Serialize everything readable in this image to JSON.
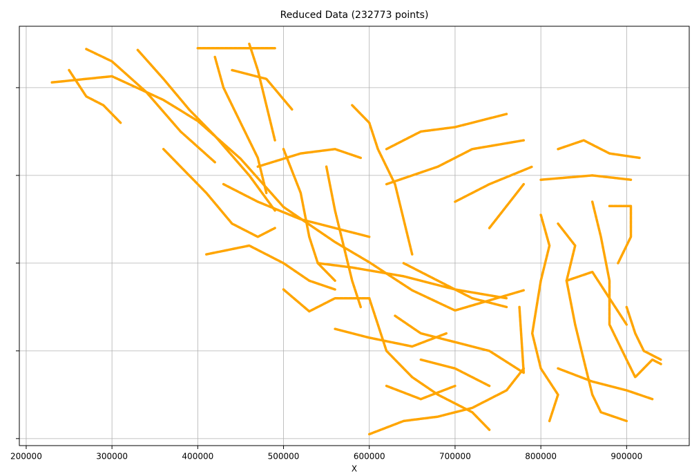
{
  "chart_data": {
    "type": "scatter",
    "title": "Reduced Data (232773 points)",
    "xlabel": "X",
    "color": "orange",
    "grid": true,
    "xlim": [
      192000,
      973000
    ],
    "xticks": [
      200000,
      300000,
      400000,
      500000,
      600000,
      700000,
      800000,
      900000
    ],
    "ylim": [
      -0.08,
      4.7
    ],
    "yticks": [
      0,
      1,
      2,
      3,
      4
    ],
    "series": [
      {
        "x": [
          230000,
          300000,
          360000,
          400000,
          450000,
          500000,
          560000,
          600000,
          650000,
          700000,
          780000
        ],
        "y": [
          4.06,
          4.13,
          3.86,
          3.62,
          3.19,
          2.64,
          2.24,
          2.01,
          1.69,
          1.46,
          1.69
        ]
      },
      {
        "x": [
          270000,
          300000,
          340000,
          380000,
          420000
        ],
        "y": [
          4.44,
          4.3,
          3.95,
          3.5,
          3.15
        ]
      },
      {
        "x": [
          330000,
          360000,
          390000,
          420000,
          460000,
          490000
        ],
        "y": [
          4.43,
          4.1,
          3.75,
          3.45,
          3.0,
          2.6
        ]
      },
      {
        "x": [
          420000,
          430000,
          450000,
          470000,
          480000
        ],
        "y": [
          4.35,
          4.0,
          3.6,
          3.2,
          2.8
        ]
      },
      {
        "x": [
          460000,
          470000,
          480000,
          490000
        ],
        "y": [
          4.5,
          4.2,
          3.8,
          3.4
        ]
      },
      {
        "x": [
          400000,
          490000
        ],
        "y": [
          4.45,
          4.45
        ]
      },
      {
        "x": [
          440000,
          480000,
          510000
        ],
        "y": [
          4.2,
          4.1,
          3.75
        ]
      },
      {
        "x": [
          360000,
          380000,
          410000,
          440000,
          470000,
          490000
        ],
        "y": [
          3.3,
          3.1,
          2.8,
          2.45,
          2.3,
          2.4
        ]
      },
      {
        "x": [
          500000,
          520000,
          530000,
          540000,
          560000
        ],
        "y": [
          3.3,
          2.8,
          2.3,
          2.0,
          1.8
        ]
      },
      {
        "x": [
          550000,
          560000,
          570000,
          580000,
          590000
        ],
        "y": [
          3.1,
          2.6,
          2.2,
          1.8,
          1.5
        ]
      },
      {
        "x": [
          580000,
          600000,
          610000,
          630000,
          640000,
          650000
        ],
        "y": [
          3.8,
          3.6,
          3.3,
          2.9,
          2.5,
          2.1
        ]
      },
      {
        "x": [
          620000,
          660000,
          700000,
          760000
        ],
        "y": [
          3.3,
          3.5,
          3.55,
          3.7
        ]
      },
      {
        "x": [
          620000,
          680000,
          720000,
          780000
        ],
        "y": [
          2.9,
          3.1,
          3.3,
          3.4
        ]
      },
      {
        "x": [
          700000,
          740000,
          790000
        ],
        "y": [
          2.7,
          2.9,
          3.1
        ]
      },
      {
        "x": [
          740000,
          780000
        ],
        "y": [
          2.4,
          2.9
        ]
      },
      {
        "x": [
          800000,
          860000,
          905000
        ],
        "y": [
          2.95,
          3.0,
          2.95
        ]
      },
      {
        "x": [
          820000,
          850000,
          880000,
          915000
        ],
        "y": [
          3.3,
          3.4,
          3.25,
          3.2
        ]
      },
      {
        "x": [
          410000,
          460000,
          500000,
          530000,
          560000
        ],
        "y": [
          2.1,
          2.2,
          2.0,
          1.8,
          1.7
        ]
      },
      {
        "x": [
          430000,
          470000,
          520000,
          560000,
          600000
        ],
        "y": [
          2.9,
          2.7,
          2.5,
          2.4,
          2.3
        ]
      },
      {
        "x": [
          500000,
          530000,
          560000,
          600000
        ],
        "y": [
          1.7,
          1.45,
          1.6,
          1.6
        ]
      },
      {
        "x": [
          600000,
          610000,
          620000,
          650000,
          680000,
          720000,
          740000
        ],
        "y": [
          1.6,
          1.3,
          1.0,
          0.7,
          0.5,
          0.3,
          0.1
        ]
      },
      {
        "x": [
          600000,
          640000,
          680000,
          720000,
          760000,
          780000
        ],
        "y": [
          0.05,
          0.2,
          0.25,
          0.35,
          0.55,
          0.8
        ]
      },
      {
        "x": [
          630000,
          660000,
          700000,
          740000,
          780000,
          775000
        ],
        "y": [
          1.4,
          1.2,
          1.1,
          1.0,
          0.75,
          1.5
        ]
      },
      {
        "x": [
          640000,
          680000,
          720000,
          760000
        ],
        "y": [
          2.0,
          1.8,
          1.6,
          1.5
        ]
      },
      {
        "x": [
          660000,
          700000,
          740000
        ],
        "y": [
          0.9,
          0.8,
          0.6
        ]
      },
      {
        "x": [
          620000,
          660000,
          700000
        ],
        "y": [
          0.6,
          0.45,
          0.6
        ]
      },
      {
        "x": [
          800000,
          810000,
          800000,
          790000,
          800000,
          820000,
          810000
        ],
        "y": [
          2.55,
          2.2,
          1.8,
          1.2,
          0.8,
          0.5,
          0.2
        ]
      },
      {
        "x": [
          820000,
          840000,
          830000,
          840000,
          850000,
          860000,
          870000,
          900000
        ],
        "y": [
          2.45,
          2.2,
          1.8,
          1.3,
          0.9,
          0.5,
          0.3,
          0.2
        ]
      },
      {
        "x": [
          860000,
          870000,
          880000,
          880000,
          900000,
          910000,
          930000,
          940000
        ],
        "y": [
          2.7,
          2.3,
          1.8,
          1.3,
          0.9,
          0.7,
          0.9,
          0.85
        ]
      },
      {
        "x": [
          880000,
          905000,
          905000,
          890000
        ],
        "y": [
          2.65,
          2.65,
          2.3,
          2.0
        ]
      },
      {
        "x": [
          900000,
          910000,
          920000,
          940000
        ],
        "y": [
          1.5,
          1.2,
          1.0,
          0.9
        ]
      },
      {
        "x": [
          820000,
          860000,
          900000,
          930000
        ],
        "y": [
          0.8,
          0.65,
          0.55,
          0.45
        ]
      },
      {
        "x": [
          830000,
          860000,
          880000,
          900000
        ],
        "y": [
          1.8,
          1.9,
          1.6,
          1.3
        ]
      },
      {
        "x": [
          250000,
          270000,
          290000,
          310000
        ],
        "y": [
          4.2,
          3.9,
          3.8,
          3.6
        ]
      },
      {
        "x": [
          470000,
          520000,
          560000,
          590000
        ],
        "y": [
          3.1,
          3.25,
          3.3,
          3.2
        ]
      },
      {
        "x": [
          540000,
          580000,
          640000,
          700000,
          760000
        ],
        "y": [
          2.0,
          1.95,
          1.85,
          1.7,
          1.6
        ]
      },
      {
        "x": [
          560000,
          600000,
          650000,
          690000
        ],
        "y": [
          1.25,
          1.15,
          1.05,
          1.2
        ]
      }
    ]
  }
}
